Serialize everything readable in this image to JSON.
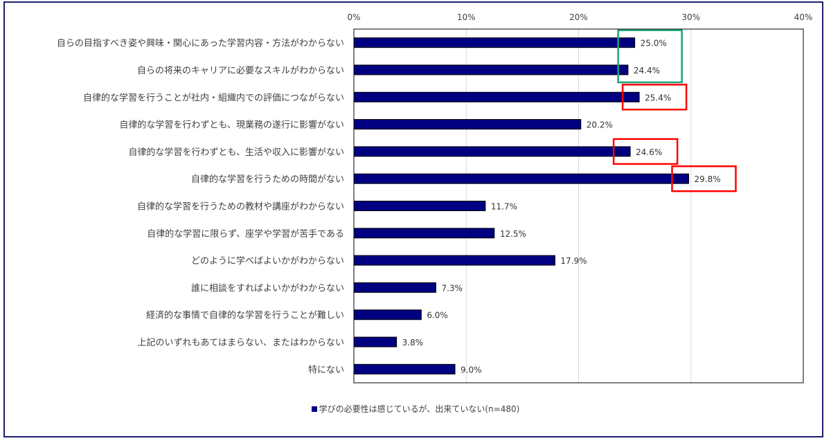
{
  "chart_data": {
    "type": "bar",
    "orientation": "horizontal",
    "categories": [
      "自らの目指すべき姿や興味・関心にあった学習内容・方法がわからない",
      "自らの将来のキャリアに必要なスキルがわからない",
      "自律的な学習を行うことが社内・組織内での評価につながらない",
      "自律的な学習を行わずとも、現業務の遂行に影響がない",
      "自律的な学習を行わずとも、生活や収入に影響がない",
      "自律的な学習を行うための時間がない",
      "自律的な学習を行うための教材や講座がわからない",
      "自律的な学習に限らず、座学や学習が苦手である",
      "どのように学べばよいかがわからない",
      "誰に相談をすればよいかがわからない",
      "経済的な事情で自律的な学習を行うことが難しい",
      "上記のいずれもあてはまらない、またはわからない",
      "特にない"
    ],
    "series": [
      {
        "name": "学びの必要性は感じているが、出来ていない(n=480)",
        "values": [
          25.0,
          24.4,
          25.4,
          20.2,
          24.6,
          29.8,
          11.7,
          12.5,
          17.9,
          7.3,
          6.0,
          3.8,
          9.0
        ]
      }
    ],
    "value_labels": [
      "25.0%",
      "24.4%",
      "25.4%",
      "20.2%",
      "24.6%",
      "29.8%",
      "11.7%",
      "12.5%",
      "17.9%",
      "7.3%",
      "6.0%",
      "3.8%",
      "9.0%"
    ],
    "xticks": [
      "0%",
      "10%",
      "20%",
      "30%",
      "40%"
    ],
    "xlim": [
      0,
      40
    ],
    "grid": true,
    "legend_position": "bottom",
    "bar_color": "#000080",
    "highlights": [
      {
        "color": "#1aa37a",
        "rows": [
          0,
          1
        ]
      },
      {
        "color": "#ff0000",
        "rows": [
          2
        ]
      },
      {
        "color": "#ff0000",
        "rows": [
          4
        ]
      },
      {
        "color": "#ff0000",
        "rows": [
          5
        ]
      }
    ]
  }
}
